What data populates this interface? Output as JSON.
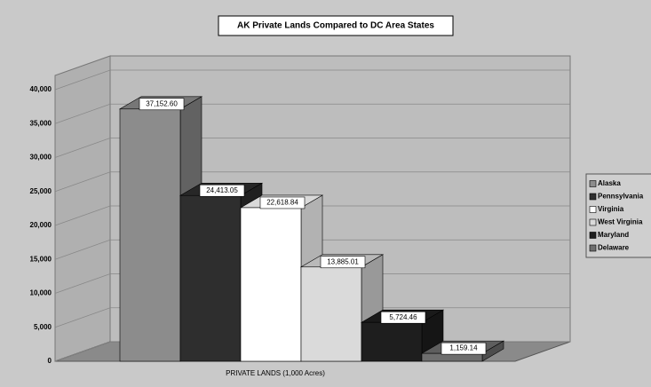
{
  "chart_data": {
    "type": "bar3d",
    "title": "AK Private Lands Compared to DC Area States",
    "categories": [
      "PRIVATE LANDS (1,000 Acres)"
    ],
    "series": [
      {
        "name": "Alaska",
        "color": "#8c8c8c",
        "values": [
          37152.6
        ],
        "value_labels": [
          "37,152.60"
        ]
      },
      {
        "name": "Pennsylvania",
        "color": "#2e2e2e",
        "values": [
          24413.05
        ],
        "value_labels": [
          "24,413.05"
        ]
      },
      {
        "name": "Virginia",
        "color": "#ffffff",
        "values": [
          22618.84
        ],
        "value_labels": [
          "22,618.84"
        ]
      },
      {
        "name": "West Virginia",
        "color": "#dadada",
        "values": [
          13885.01
        ],
        "value_labels": [
          "13,885.01"
        ]
      },
      {
        "name": "Maryland",
        "color": "#1e1e1e",
        "values": [
          5724.46
        ],
        "value_labels": [
          "5,724.46"
        ]
      },
      {
        "name": "Delaware",
        "color": "#6e6e6e",
        "values": [
          1159.14
        ],
        "value_labels": [
          "1,159.14"
        ]
      }
    ],
    "ylim": [
      0,
      40000
    ],
    "yticks": [
      0,
      {
        "value": 5000,
        "label": "5,000"
      },
      {
        "value": 10000,
        "label": "10,000"
      },
      {
        "value": 15000,
        "label": "15,000"
      },
      {
        "value": 20000,
        "label": "20,000"
      },
      {
        "value": 25000,
        "label": "25,000"
      },
      {
        "value": 30000,
        "label": "30,000"
      },
      {
        "value": 35000,
        "label": "35,000"
      },
      {
        "value": 40000,
        "label": "40,000"
      }
    ],
    "grid": true
  }
}
